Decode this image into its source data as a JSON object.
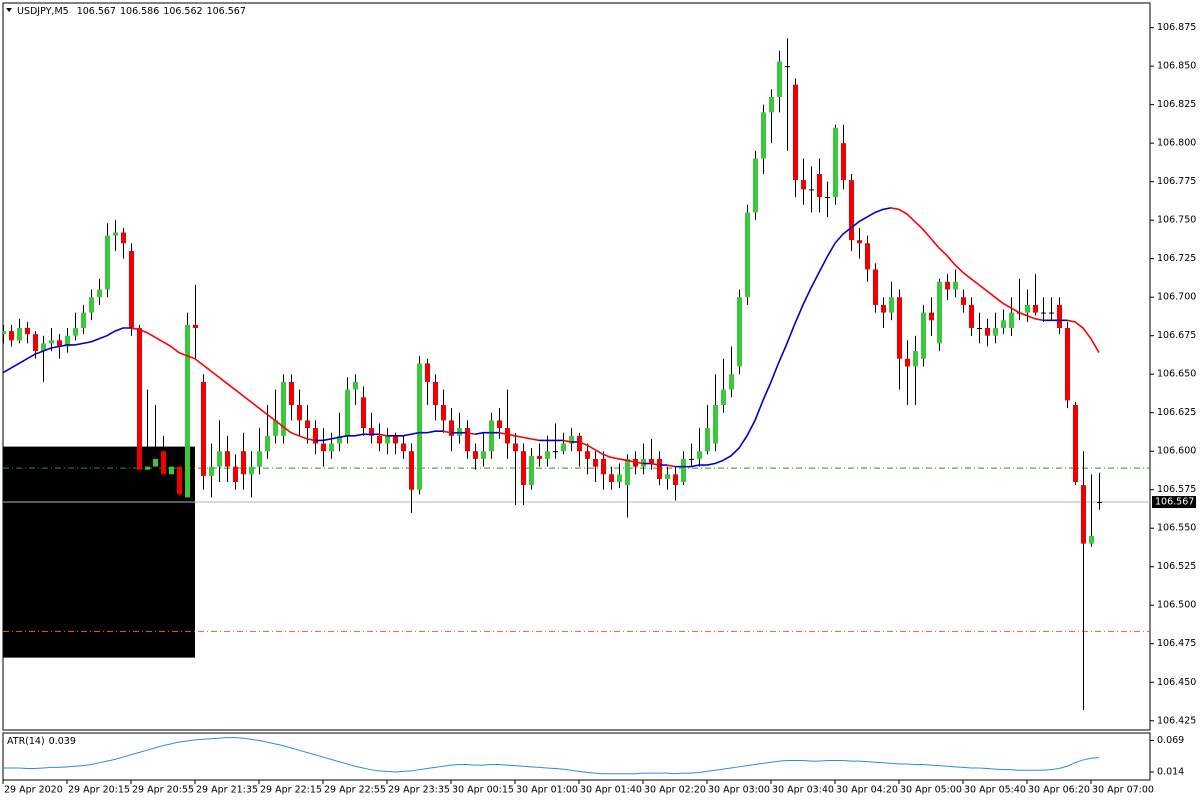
{
  "chart_data": {
    "type": "candlestick",
    "title": "USDJPY,M5",
    "categories": [
      "29 Apr 2020",
      null,
      null,
      null,
      null,
      null,
      null,
      null,
      "29 Apr 20:15",
      null,
      null,
      null,
      null,
      null,
      null,
      null,
      "29 Apr 20:55",
      null,
      null,
      null,
      null,
      null,
      null,
      null,
      "29 Apr 21:35",
      null,
      null,
      null,
      null,
      null,
      null,
      null,
      "29 Apr 22:15",
      null,
      null,
      null,
      null,
      null,
      null,
      null,
      "29 Apr 22:55",
      null,
      null,
      null,
      null,
      null,
      null,
      null,
      "29 Apr 23:35",
      null,
      null,
      null,
      null,
      null,
      null,
      null,
      "30 Apr 00:15",
      null,
      null,
      null,
      null,
      null,
      null,
      null,
      "30 Apr 01:00",
      null,
      null,
      null,
      null,
      null,
      null,
      null,
      "30 Apr 01:40",
      null,
      null,
      null,
      null,
      null,
      null,
      null,
      "30 Apr 02:20",
      null,
      null,
      null,
      null,
      null,
      null,
      null,
      "30 Apr 03:00",
      null,
      null,
      null,
      null,
      null,
      null,
      null,
      "30 Apr 03:40",
      null,
      null,
      null,
      null,
      null,
      null,
      null,
      "30 Apr 04:20",
      null,
      null,
      null,
      null,
      null,
      null,
      null,
      "30 Apr 05:00",
      null,
      null,
      null,
      null,
      null,
      null,
      null,
      "30 Apr 05:40",
      null,
      null,
      null,
      null,
      null,
      null,
      null,
      "30 Apr 06:20",
      null,
      null,
      null,
      null,
      null,
      null,
      null,
      "30 Apr 07:00",
      null
    ],
    "open": [
      106.676,
      106.678,
      106.672,
      106.68,
      106.676,
      106.665,
      106.67,
      106.672,
      106.668,
      106.675,
      106.68,
      106.69,
      106.7,
      106.705,
      106.74,
      106.742,
      106.73,
      106.68,
      106.588,
      106.59,
      106.6,
      106.585,
      106.59,
      106.57,
      106.682,
      106.645,
      106.584,
      106.59,
      106.6,
      106.59,
      106.6,
      106.585,
      106.59,
      106.6,
      106.61,
      106.61,
      106.645,
      106.63,
      106.62,
      106.615,
      106.605,
      106.6,
      106.605,
      106.61,
      106.64,
      106.635,
      106.615,
      106.61,
      106.605,
      106.61,
      106.605,
      106.6,
      106.575,
      106.657,
      106.645,
      106.63,
      106.62,
      106.61,
      106.615,
      106.6,
      106.595,
      106.6,
      106.62,
      106.615,
      106.605,
      106.6,
      106.578,
      106.597,
      106.595,
      106.6,
      106.6,
      106.605,
      106.61,
      106.6,
      106.595,
      106.595,
      106.585,
      106.58,
      106.578,
      106.595,
      106.59,
      106.595,
      106.595,
      106.582,
      106.585,
      106.58,
      106.595,
      106.595,
      106.6,
      106.605,
      106.63,
      106.64,
      106.655,
      106.7,
      106.755,
      106.79,
      106.82,
      106.83,
      106.85,
      106.838,
      106.776,
      106.77,
      106.78,
      106.765,
      106.765,
      106.8,
      106.776,
      106.737,
      106.735,
      106.718,
      106.695,
      106.69,
      106.7,
      106.66,
      106.655,
      106.66,
      106.69,
      106.67,
      106.71,
      106.705,
      106.7,
      106.695,
      106.68,
      106.68,
      106.675,
      106.68,
      106.68,
      106.69,
      106.69,
      106.695,
      106.69,
      106.69,
      106.695,
      106.68,
      106.63,
      106.578,
      106.54,
      106.567
    ],
    "high": [
      106.682,
      106.682,
      106.686,
      106.684,
      106.678,
      106.675,
      106.68,
      106.676,
      106.68,
      106.69,
      106.695,
      106.705,
      106.712,
      106.748,
      106.75,
      106.745,
      106.735,
      106.682,
      106.64,
      106.63,
      106.61,
      106.6,
      106.598,
      106.69,
      106.708,
      106.65,
      106.605,
      106.62,
      106.61,
      106.598,
      106.612,
      106.6,
      106.615,
      106.63,
      106.64,
      106.65,
      106.65,
      106.64,
      106.63,
      106.62,
      106.615,
      106.612,
      106.625,
      106.648,
      106.65,
      106.642,
      106.625,
      106.618,
      106.615,
      106.612,
      106.61,
      106.605,
      106.662,
      106.66,
      106.65,
      106.64,
      106.628,
      106.625,
      106.62,
      106.605,
      106.612,
      106.625,
      106.628,
      106.64,
      106.612,
      106.605,
      106.602,
      106.605,
      106.61,
      106.618,
      106.612,
      106.615,
      106.612,
      106.605,
      106.6,
      106.6,
      106.59,
      106.592,
      106.598,
      106.6,
      106.605,
      106.608,
      106.6,
      106.59,
      106.59,
      106.6,
      106.605,
      106.615,
      106.63,
      106.65,
      106.66,
      106.668,
      106.705,
      106.76,
      106.795,
      106.825,
      106.835,
      106.86,
      106.868,
      106.842,
      106.79,
      106.785,
      106.79,
      106.775,
      106.812,
      106.812,
      106.78,
      106.745,
      106.74,
      106.722,
      106.7,
      106.71,
      106.705,
      106.672,
      106.675,
      106.695,
      106.7,
      106.712,
      106.715,
      106.718,
      106.705,
      106.7,
      106.69,
      106.686,
      106.69,
      106.692,
      106.7,
      106.712,
      106.705,
      106.715,
      106.7,
      106.7,
      106.7,
      106.684,
      106.632,
      106.6,
      106.585,
      106.586
    ],
    "low": [
      106.67,
      106.668,
      106.67,
      106.67,
      106.66,
      106.645,
      106.665,
      106.66,
      106.664,
      106.672,
      106.676,
      106.685,
      106.695,
      106.7,
      106.73,
      106.725,
      106.675,
      106.585,
      106.58,
      106.585,
      106.58,
      106.575,
      106.57,
      106.568,
      106.66,
      106.575,
      106.57,
      106.58,
      106.58,
      106.575,
      106.575,
      106.57,
      106.585,
      106.595,
      106.605,
      106.605,
      106.62,
      106.61,
      106.605,
      106.598,
      106.59,
      106.595,
      106.6,
      106.605,
      106.63,
      106.61,
      106.605,
      106.6,
      106.598,
      106.598,
      106.595,
      106.56,
      106.572,
      106.63,
      106.62,
      106.612,
      106.6,
      106.605,
      106.595,
      106.588,
      106.59,
      106.595,
      106.608,
      106.595,
      106.565,
      106.565,
      106.575,
      106.59,
      106.59,
      106.595,
      106.598,
      106.6,
      106.59,
      106.585,
      106.58,
      106.575,
      106.575,
      106.576,
      106.557,
      106.585,
      106.585,
      106.588,
      106.578,
      106.575,
      106.568,
      106.578,
      106.59,
      106.59,
      106.598,
      106.6,
      106.625,
      106.635,
      106.65,
      106.695,
      106.75,
      106.78,
      106.8,
      106.82,
      106.795,
      106.765,
      106.76,
      106.755,
      106.755,
      106.752,
      106.76,
      106.77,
      106.73,
      106.725,
      106.71,
      106.69,
      106.68,
      106.685,
      106.64,
      106.63,
      106.63,
      106.655,
      106.675,
      106.665,
      106.698,
      106.7,
      106.69,
      106.675,
      106.67,
      106.668,
      106.67,
      106.676,
      106.675,
      106.685,
      106.684,
      106.688,
      106.684,
      106.685,
      106.676,
      106.628,
      106.578,
      106.432,
      106.538,
      106.562
    ],
    "close": [
      106.678,
      106.672,
      106.68,
      106.676,
      106.665,
      106.67,
      106.672,
      106.668,
      106.675,
      106.68,
      106.69,
      106.7,
      106.705,
      106.74,
      106.742,
      106.735,
      106.68,
      106.588,
      106.59,
      106.595,
      106.585,
      106.59,
      106.572,
      106.682,
      106.68,
      106.584,
      106.59,
      106.6,
      106.59,
      106.58,
      106.585,
      106.59,
      106.6,
      106.61,
      106.62,
      106.645,
      106.63,
      106.62,
      106.615,
      106.605,
      106.6,
      106.605,
      106.61,
      106.64,
      106.645,
      106.615,
      106.61,
      106.605,
      106.61,
      106.605,
      106.6,
      106.575,
      106.657,
      106.645,
      106.63,
      106.62,
      106.61,
      106.615,
      106.6,
      106.595,
      106.6,
      106.62,
      106.615,
      106.605,
      106.6,
      106.578,
      106.597,
      106.595,
      106.6,
      106.6,
      106.605,
      106.61,
      106.6,
      106.595,
      106.59,
      106.585,
      106.58,
      106.585,
      106.595,
      106.59,
      106.595,
      106.592,
      106.582,
      106.585,
      106.578,
      106.595,
      106.595,
      106.6,
      106.615,
      106.63,
      106.64,
      106.65,
      106.7,
      106.755,
      106.79,
      106.82,
      106.83,
      106.853,
      106.85,
      106.776,
      106.77,
      106.77,
      106.765,
      106.765,
      106.81,
      106.776,
      106.737,
      106.735,
      106.718,
      106.695,
      106.69,
      106.7,
      106.66,
      106.655,
      106.665,
      106.69,
      106.685,
      106.71,
      106.705,
      106.71,
      106.695,
      106.68,
      106.68,
      106.675,
      106.68,
      106.685,
      106.69,
      106.69,
      106.695,
      106.69,
      106.69,
      106.69,
      106.68,
      106.633,
      106.58,
      106.54,
      106.545,
      106.567
    ],
    "ma": [
      106.651,
      106.654,
      106.657,
      106.66,
      106.663,
      106.665,
      106.667,
      106.668,
      106.669,
      106.669,
      106.67,
      106.671,
      106.673,
      106.675,
      106.678,
      106.68,
      106.68,
      106.679,
      106.677,
      106.674,
      106.671,
      106.668,
      106.664,
      106.662,
      106.66,
      106.656,
      106.652,
      106.648,
      106.644,
      106.64,
      106.636,
      106.632,
      106.628,
      106.624,
      106.62,
      106.616,
      106.612,
      106.61,
      106.608,
      106.607,
      106.607,
      106.608,
      106.609,
      106.61,
      106.61,
      106.611,
      106.611,
      106.611,
      106.61,
      106.61,
      106.61,
      106.611,
      106.612,
      106.612,
      106.613,
      106.613,
      106.612,
      106.612,
      106.612,
      106.611,
      106.612,
      106.612,
      106.612,
      106.611,
      106.61,
      106.609,
      106.608,
      106.607,
      106.607,
      106.607,
      106.607,
      106.606,
      106.606,
      106.604,
      106.601,
      106.598,
      106.596,
      106.595,
      106.594,
      106.593,
      106.592,
      106.592,
      106.591,
      106.591,
      106.59,
      106.59,
      106.59,
      106.591,
      106.591,
      106.592,
      106.594,
      106.597,
      106.602,
      106.61,
      106.62,
      106.633,
      106.645,
      106.658,
      106.67,
      106.683,
      106.695,
      106.706,
      106.716,
      106.726,
      106.735,
      106.741,
      106.745,
      106.749,
      106.752,
      106.755,
      106.757,
      106.758,
      106.757,
      106.754,
      106.749,
      106.744,
      106.738,
      106.732,
      106.727,
      106.721,
      106.716,
      106.712,
      106.708,
      106.704,
      106.7,
      106.696,
      106.693,
      106.69,
      106.688,
      106.686,
      106.685,
      106.685,
      106.685,
      106.685,
      106.684,
      106.68,
      106.673,
      106.664
    ],
    "ma_up_color": "#0000c8",
    "ma_down_color": "#ff0000",
    "up_color": "#3cc83c",
    "down_color": "#f00000",
    "ylim": [
      106.419,
      106.891
    ],
    "yticks": [
      106.875,
      {
        "value": 106.85,
        "label": "106.850"
      },
      106.825,
      {
        "value": 106.8,
        "label": "106.800"
      },
      106.775,
      {
        "value": 106.75,
        "label": "106.750"
      },
      106.725,
      {
        "value": 106.7,
        "label": "106.700"
      },
      106.675,
      {
        "value": 106.65,
        "label": "106.650"
      },
      106.625,
      {
        "value": 106.6,
        "label": "106.600"
      },
      106.575,
      {
        "value": 106.55,
        "label": "106.550"
      },
      106.525,
      {
        "value": 106.5,
        "label": "106.500"
      },
      106.475,
      {
        "value": 106.45,
        "label": "106.450"
      },
      106.425
    ],
    "levels": [
      {
        "value": 106.589,
        "color": "#1e9e1e"
      },
      {
        "value": 106.483,
        "color": "#e8602c"
      }
    ],
    "box": {
      "high": 106.603,
      "low": 106.466,
      "color": "#000000"
    },
    "indicator": {
      "label": "ATR(14)",
      "color": "#2a8ee6",
      "ylim": [
        0,
        0.082
      ],
      "yticks": [
        0.069,
        0.014
      ],
      "values": [
        0.021,
        0.021,
        0.021,
        0.02,
        0.02,
        0.021,
        0.022,
        0.022,
        0.023,
        0.024,
        0.025,
        0.027,
        0.03,
        0.033,
        0.036,
        0.04,
        0.044,
        0.048,
        0.052,
        0.056,
        0.06,
        0.063,
        0.066,
        0.068,
        0.07,
        0.071,
        0.072,
        0.073,
        0.074,
        0.074,
        0.073,
        0.071,
        0.069,
        0.066,
        0.063,
        0.06,
        0.056,
        0.052,
        0.048,
        0.044,
        0.04,
        0.036,
        0.032,
        0.028,
        0.024,
        0.021,
        0.018,
        0.016,
        0.015,
        0.014,
        0.015,
        0.016,
        0.018,
        0.02,
        0.022,
        0.024,
        0.026,
        0.027,
        0.027,
        0.026,
        0.026,
        0.027,
        0.027,
        0.026,
        0.025,
        0.024,
        0.023,
        0.022,
        0.021,
        0.02,
        0.019,
        0.017,
        0.015,
        0.013,
        0.012,
        0.011,
        0.011,
        0.011,
        0.011,
        0.011,
        0.012,
        0.012,
        0.012,
        0.012,
        0.011,
        0.012,
        0.012,
        0.013,
        0.015,
        0.017,
        0.019,
        0.021,
        0.023,
        0.025,
        0.027,
        0.029,
        0.031,
        0.033,
        0.034,
        0.034,
        0.034,
        0.033,
        0.033,
        0.034,
        0.034,
        0.034,
        0.033,
        0.033,
        0.032,
        0.031,
        0.03,
        0.029,
        0.028,
        0.028,
        0.027,
        0.027,
        0.026,
        0.025,
        0.024,
        0.023,
        0.022,
        0.021,
        0.021,
        0.02,
        0.019,
        0.018,
        0.018,
        0.017,
        0.017,
        0.017,
        0.017,
        0.018,
        0.02,
        0.024,
        0.03,
        0.035,
        0.038,
        0.039
      ]
    }
  }
}
